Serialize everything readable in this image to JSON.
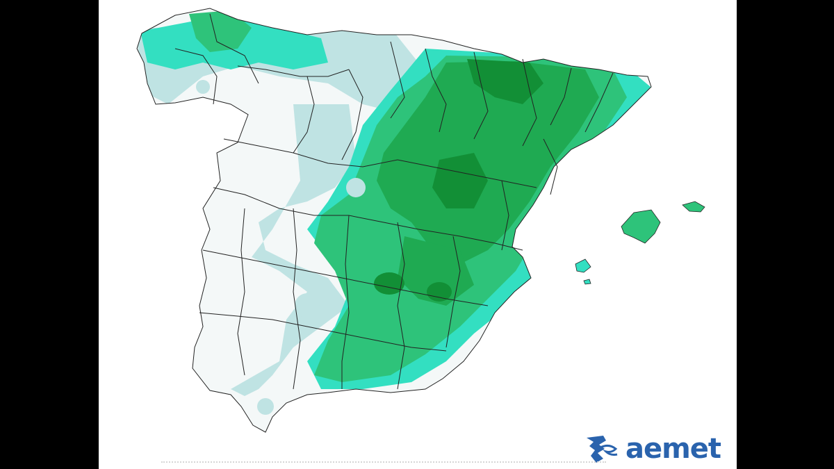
{
  "map": {
    "region": "Spain",
    "colors": {
      "background_frame": "#000000",
      "map_background": "#ffffff",
      "land_low": "#f4f8f8",
      "land_pale_blue": "#bfe3e3",
      "land_cyan": "#33dfc1",
      "land_medium_green": "#2ec37a",
      "land_green": "#1faa52",
      "land_dark_green": "#128f36",
      "province_borders": "#222222"
    }
  },
  "logo": {
    "text": "aemet",
    "color": "#2a63ad"
  }
}
